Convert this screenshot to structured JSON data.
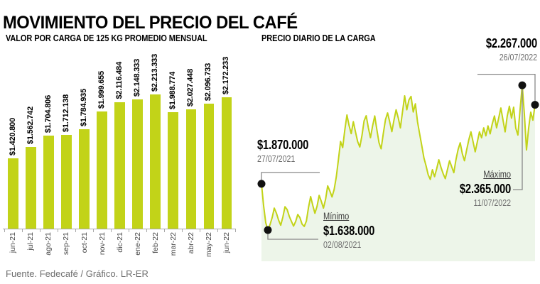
{
  "title": "MOVIMIENTO DEL PRECIO DEL CAFÉ",
  "footer": "Fuente. Fedecafé / Gráfico. LR-ER",
  "colors": {
    "accent": "#c2d318",
    "area_fill": "#edf5e9",
    "callout": "#888888",
    "axis": "#a8a8a8",
    "marker": "#111111",
    "muted_text": "#6e6e6e"
  },
  "chart_data": [
    {
      "type": "bar",
      "title": "VALOR POR CARGA DE 125 KG PROMEDIO MENSUAL",
      "categories": [
        "jun-21",
        "jul-21",
        "ago-21",
        "sep-21",
        "oct-21",
        "nov-21",
        "dic-21",
        "ene-22",
        "feb-22",
        "mar-22",
        "abr-22",
        "may-22",
        "jun-22"
      ],
      "values": [
        1420800,
        1562742,
        1704806,
        1712138,
        1784935,
        1999655,
        2116484,
        2148333,
        2213333,
        1988774,
        2027448,
        2096733,
        2172233
      ],
      "labels": [
        "$1.420.800",
        "$1.562.742",
        "$1.704.806",
        "$1.712.138",
        "$1.784.935",
        "$1.999.655",
        "$2.116.484",
        "$2.148.333",
        "$2.213.333",
        "$1.988.774",
        "$2.027.448",
        "$2.096.733",
        "$2.172.233"
      ],
      "ylim": [
        560000,
        2350000
      ],
      "grid": false,
      "y_axis_visible": false,
      "legend": "none"
    },
    {
      "type": "area",
      "title": "PRECIO DIARIO DE LA CARGA",
      "x_range": [
        "27/07/2021",
        "26/07/2022"
      ],
      "ylim": [
        1481000,
        2426000
      ],
      "grid": false,
      "axes_visible": false,
      "legend": "none",
      "values": [
        1870000,
        1760000,
        1675000,
        1638000,
        1665000,
        1700000,
        1748000,
        1722000,
        1688000,
        1662000,
        1703000,
        1755000,
        1741000,
        1707000,
        1682000,
        1658000,
        1681000,
        1716000,
        1700000,
        1668000,
        1656000,
        1683000,
        1752000,
        1806000,
        1762000,
        1722000,
        1757000,
        1812000,
        1782000,
        1748000,
        1792000,
        1860000,
        1833000,
        1804000,
        1842000,
        1905000,
        1992000,
        2083000,
        2052000,
        2141000,
        2216000,
        2163000,
        2122000,
        2182000,
        2131000,
        2082000,
        2055000,
        2112000,
        2186000,
        2212000,
        2152000,
        2102000,
        2161000,
        2211000,
        2142000,
        2077000,
        2046000,
        2121000,
        2192000,
        2226000,
        2181000,
        2132000,
        2191000,
        2242000,
        2201000,
        2151000,
        2232000,
        2312000,
        2242000,
        2291000,
        2309000,
        2231000,
        2272000,
        2182000,
        2121000,
        2062000,
        2001000,
        1961000,
        1916000,
        1892000,
        1941000,
        1906000,
        1946000,
        1991000,
        1952000,
        1921000,
        1896000,
        1941000,
        1986000,
        1956000,
        1926000,
        1991000,
        2042000,
        2076000,
        2021000,
        1986000,
        2041000,
        2091000,
        2131000,
        2081000,
        2031000,
        2081000,
        2131000,
        2101000,
        2151000,
        2111000,
        2161000,
        2121000,
        2171000,
        2211000,
        2151000,
        2201000,
        2251000,
        2191000,
        2131000,
        2211000,
        2260000,
        2200000,
        2255000,
        2150000,
        2115000,
        2240000,
        2365000,
        2220000,
        2040000,
        2150000,
        2230000,
        2190000,
        2267000
      ],
      "annotations": [
        {
          "id": "start",
          "label": "$1.870.000",
          "date": "27/07/2021",
          "value": 1870000,
          "point_index": 0
        },
        {
          "id": "min",
          "name": "Mínimo",
          "label": "$1.638.000",
          "date": "02/08/2021",
          "value": 1638000,
          "point_index": 3
        },
        {
          "id": "max",
          "name": "Máximo",
          "label": "$2.365.000",
          "date": "11/07/2022",
          "value": 2365000,
          "point_index": 122
        },
        {
          "id": "end",
          "label": "$2.267.000",
          "date": "26/07/2022",
          "value": 2267000,
          "point_index": 128
        }
      ]
    }
  ]
}
